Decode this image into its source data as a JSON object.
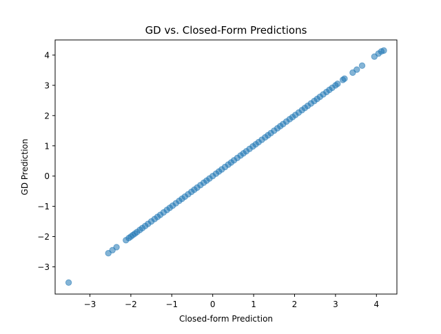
{
  "chart_data": {
    "type": "scatter",
    "title": "GD vs. Closed-Form Predictions",
    "xlabel": "Closed-form Prediction",
    "ylabel": "GD Prediction",
    "xlim": [
      -3.85,
      4.5
    ],
    "ylim": [
      -3.9,
      4.5
    ],
    "xticks": [
      -3,
      -2,
      -1,
      0,
      1,
      2,
      3,
      4
    ],
    "yticks": [
      -3,
      -2,
      -1,
      0,
      1,
      2,
      3,
      4
    ],
    "grid": false,
    "legend": "none",
    "marker_color": "#1f77b4",
    "marker_alpha": 0.55,
    "series": [
      {
        "x": [
          -3.52,
          -2.55,
          -2.45,
          -2.35,
          -2.12,
          -2.05,
          -2.0,
          -1.95,
          -1.9,
          -1.85,
          -1.78,
          -1.72,
          -1.65,
          -1.58,
          -1.5,
          -1.42,
          -1.35,
          -1.28,
          -1.2,
          -1.12,
          -1.05,
          -0.98,
          -0.9,
          -0.82,
          -0.75,
          -0.68,
          -0.6,
          -0.52,
          -0.45,
          -0.38,
          -0.3,
          -0.22,
          -0.15,
          -0.08,
          0.0,
          0.08,
          0.15,
          0.22,
          0.3,
          0.38,
          0.45,
          0.52,
          0.6,
          0.68,
          0.75,
          0.82,
          0.9,
          0.98,
          1.05,
          1.12,
          1.2,
          1.28,
          1.35,
          1.42,
          1.5,
          1.58,
          1.65,
          1.72,
          1.8,
          1.88,
          1.95,
          2.02,
          2.1,
          2.18,
          2.25,
          2.32,
          2.4,
          2.48,
          2.55,
          2.62,
          2.7,
          2.78,
          2.85,
          2.92,
          3.0,
          3.05,
          3.18,
          3.22,
          3.42,
          3.52,
          3.65,
          3.95,
          4.05,
          4.12,
          4.18
        ],
        "y": [
          -3.52,
          -2.55,
          -2.45,
          -2.35,
          -2.12,
          -2.05,
          -2.0,
          -1.95,
          -1.9,
          -1.85,
          -1.78,
          -1.72,
          -1.65,
          -1.58,
          -1.5,
          -1.42,
          -1.35,
          -1.28,
          -1.2,
          -1.12,
          -1.05,
          -0.98,
          -0.9,
          -0.82,
          -0.75,
          -0.68,
          -0.6,
          -0.52,
          -0.45,
          -0.38,
          -0.3,
          -0.22,
          -0.15,
          -0.08,
          0.0,
          0.08,
          0.15,
          0.22,
          0.3,
          0.38,
          0.45,
          0.52,
          0.6,
          0.68,
          0.75,
          0.82,
          0.9,
          0.98,
          1.05,
          1.12,
          1.2,
          1.28,
          1.35,
          1.42,
          1.5,
          1.58,
          1.65,
          1.72,
          1.8,
          1.88,
          1.95,
          2.02,
          2.1,
          2.18,
          2.25,
          2.32,
          2.4,
          2.48,
          2.55,
          2.62,
          2.7,
          2.78,
          2.85,
          2.92,
          3.0,
          3.05,
          3.18,
          3.22,
          3.42,
          3.52,
          3.65,
          3.95,
          4.05,
          4.12,
          4.15
        ]
      }
    ]
  }
}
